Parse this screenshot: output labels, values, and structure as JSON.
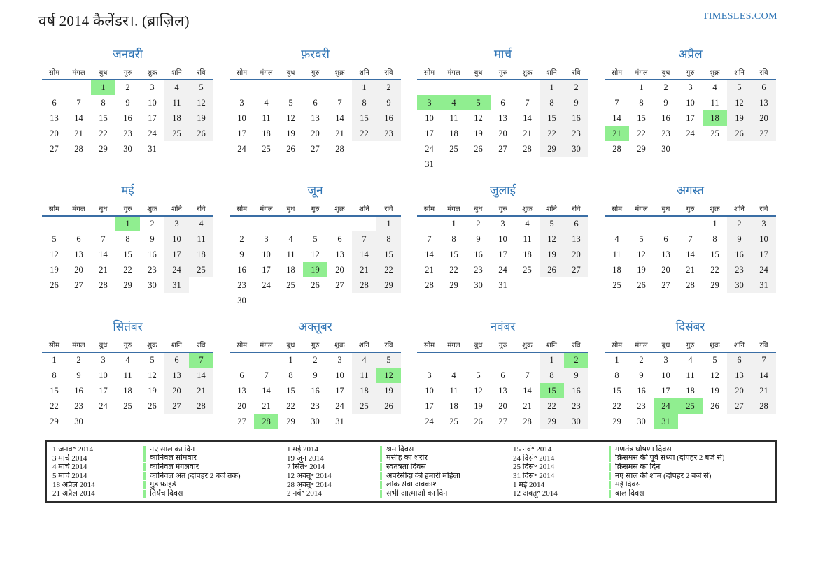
{
  "page": {
    "title": "वर्ष 2014 कैलेंडर।. (ब्राज़िल)",
    "website": "TIMESLES.COM"
  },
  "colors": {
    "accent_blue": "#2E74B5",
    "header_rule_blue": "#3A6EA5",
    "holiday_green": "#90EE90",
    "weekend_gray": "#F1F1F1"
  },
  "weekday_headers": [
    "सोम",
    "मंगल",
    "बुध",
    "गुरु",
    "शुक्र",
    "शनि",
    "रवि"
  ],
  "months": [
    {
      "name": "जनवरी",
      "weeks": [
        [
          null,
          null,
          1,
          2,
          3,
          4,
          5
        ],
        [
          6,
          7,
          8,
          9,
          10,
          11,
          12
        ],
        [
          13,
          14,
          15,
          16,
          17,
          18,
          19
        ],
        [
          20,
          21,
          22,
          23,
          24,
          25,
          26
        ],
        [
          27,
          28,
          29,
          30,
          31,
          null,
          null
        ]
      ],
      "holidays": [
        1
      ]
    },
    {
      "name": "फ़रवरी",
      "weeks": [
        [
          null,
          null,
          null,
          null,
          null,
          1,
          2
        ],
        [
          3,
          4,
          5,
          6,
          7,
          8,
          9
        ],
        [
          10,
          11,
          12,
          13,
          14,
          15,
          16
        ],
        [
          17,
          18,
          19,
          20,
          21,
          22,
          23
        ],
        [
          24,
          25,
          26,
          27,
          28,
          null,
          null
        ]
      ],
      "holidays": []
    },
    {
      "name": "मार्च",
      "weeks": [
        [
          null,
          null,
          null,
          null,
          null,
          1,
          2
        ],
        [
          3,
          4,
          5,
          6,
          7,
          8,
          9
        ],
        [
          10,
          11,
          12,
          13,
          14,
          15,
          16
        ],
        [
          17,
          18,
          19,
          20,
          21,
          22,
          23
        ],
        [
          24,
          25,
          26,
          27,
          28,
          29,
          30
        ],
        [
          31,
          null,
          null,
          null,
          null,
          null,
          null
        ]
      ],
      "holidays": [
        3,
        4,
        5
      ]
    },
    {
      "name": "अप्रैल",
      "weeks": [
        [
          null,
          1,
          2,
          3,
          4,
          5,
          6
        ],
        [
          7,
          8,
          9,
          10,
          11,
          12,
          13
        ],
        [
          14,
          15,
          16,
          17,
          18,
          19,
          20
        ],
        [
          21,
          22,
          23,
          24,
          25,
          26,
          27
        ],
        [
          28,
          29,
          30,
          null,
          null,
          null,
          null
        ]
      ],
      "holidays": [
        18,
        21
      ]
    },
    {
      "name": "मई",
      "weeks": [
        [
          null,
          null,
          null,
          1,
          2,
          3,
          4
        ],
        [
          5,
          6,
          7,
          8,
          9,
          10,
          11
        ],
        [
          12,
          13,
          14,
          15,
          16,
          17,
          18
        ],
        [
          19,
          20,
          21,
          22,
          23,
          24,
          25
        ],
        [
          26,
          27,
          28,
          29,
          30,
          31,
          null
        ]
      ],
      "holidays": [
        1
      ]
    },
    {
      "name": "जून",
      "weeks": [
        [
          null,
          null,
          null,
          null,
          null,
          null,
          1
        ],
        [
          2,
          3,
          4,
          5,
          6,
          7,
          8
        ],
        [
          9,
          10,
          11,
          12,
          13,
          14,
          15
        ],
        [
          16,
          17,
          18,
          19,
          20,
          21,
          22
        ],
        [
          23,
          24,
          25,
          26,
          27,
          28,
          29
        ],
        [
          30,
          null,
          null,
          null,
          null,
          null,
          null
        ]
      ],
      "holidays": [
        19
      ]
    },
    {
      "name": "जुलाई",
      "weeks": [
        [
          null,
          1,
          2,
          3,
          4,
          5,
          6
        ],
        [
          7,
          8,
          9,
          10,
          11,
          12,
          13
        ],
        [
          14,
          15,
          16,
          17,
          18,
          19,
          20
        ],
        [
          21,
          22,
          23,
          24,
          25,
          26,
          27
        ],
        [
          28,
          29,
          30,
          31,
          null,
          null,
          null
        ]
      ],
      "holidays": []
    },
    {
      "name": "अगस्त",
      "weeks": [
        [
          null,
          null,
          null,
          null,
          1,
          2,
          3
        ],
        [
          4,
          5,
          6,
          7,
          8,
          9,
          10
        ],
        [
          11,
          12,
          13,
          14,
          15,
          16,
          17
        ],
        [
          18,
          19,
          20,
          21,
          22,
          23,
          24
        ],
        [
          25,
          26,
          27,
          28,
          29,
          30,
          31
        ]
      ],
      "holidays": []
    },
    {
      "name": "सितंबर",
      "weeks": [
        [
          1,
          2,
          3,
          4,
          5,
          6,
          7
        ],
        [
          8,
          9,
          10,
          11,
          12,
          13,
          14
        ],
        [
          15,
          16,
          17,
          18,
          19,
          20,
          21
        ],
        [
          22,
          23,
          24,
          25,
          26,
          27,
          28
        ],
        [
          29,
          30,
          null,
          null,
          null,
          null,
          null
        ]
      ],
      "holidays": [
        7
      ]
    },
    {
      "name": "अक्तूबर",
      "weeks": [
        [
          null,
          null,
          1,
          2,
          3,
          4,
          5
        ],
        [
          6,
          7,
          8,
          9,
          10,
          11,
          12
        ],
        [
          13,
          14,
          15,
          16,
          17,
          18,
          19
        ],
        [
          20,
          21,
          22,
          23,
          24,
          25,
          26
        ],
        [
          27,
          28,
          29,
          30,
          31,
          null,
          null
        ]
      ],
      "holidays": [
        12,
        28
      ]
    },
    {
      "name": "नवंबर",
      "weeks": [
        [
          null,
          null,
          null,
          null,
          null,
          1,
          2
        ],
        [
          3,
          4,
          5,
          6,
          7,
          8,
          9
        ],
        [
          10,
          11,
          12,
          13,
          14,
          15,
          16
        ],
        [
          17,
          18,
          19,
          20,
          21,
          22,
          23
        ],
        [
          24,
          25,
          26,
          27,
          28,
          29,
          30
        ]
      ],
      "holidays": [
        2,
        15
      ]
    },
    {
      "name": "दिसंबर",
      "weeks": [
        [
          1,
          2,
          3,
          4,
          5,
          6,
          7
        ],
        [
          8,
          9,
          10,
          11,
          12,
          13,
          14
        ],
        [
          15,
          16,
          17,
          18,
          19,
          20,
          21
        ],
        [
          22,
          23,
          24,
          25,
          26,
          27,
          28
        ],
        [
          29,
          30,
          31,
          null,
          null,
          null,
          null
        ]
      ],
      "holidays": [
        24,
        25,
        31
      ]
    }
  ],
  "legend": {
    "columns": [
      {
        "entries": [
          {
            "date": "1 जनव॰ 2014",
            "name": "नए साल का दिन"
          },
          {
            "date": "3 मार्च 2014",
            "name": "कार्निवल सोमवार"
          },
          {
            "date": "4 मार्च 2014",
            "name": "कार्निवल मंगलवार"
          },
          {
            "date": "5 मार्च 2014",
            "name": "कार्निवल अंत (दोपहर 2 बजे तक)"
          },
          {
            "date": "18 अप्रैल 2014",
            "name": "गुड फ्राइडे"
          },
          {
            "date": "21 अप्रैल 2014",
            "name": "तिर्यंच दिवस"
          }
        ]
      },
      {
        "entries": [
          {
            "date": "1 मई 2014",
            "name": "श्रम दिवस"
          },
          {
            "date": "19 जून 2014",
            "name": "मसीह का शरीर"
          },
          {
            "date": "7 सितं॰ 2014",
            "name": "स्वतंत्रता दिवस"
          },
          {
            "date": "12 अक्तू॰ 2014",
            "name": "अपरेसीदा की हमारी महिला"
          },
          {
            "date": "28 अक्तू॰ 2014",
            "name": "लोक सेवा अवकाश"
          },
          {
            "date": "2 नवं॰ 2014",
            "name": "सभी आत्माओं का दिन"
          }
        ]
      },
      {
        "entries": [
          {
            "date": "15 नवं॰ 2014",
            "name": "गणतंत्र घोषणा दिवस"
          },
          {
            "date": "24 दिसं॰ 2014",
            "name": "क्रिसमस की पूर्व संध्या (दोपहर 2 बजे से)"
          },
          {
            "date": "25 दिसं॰ 2014",
            "name": "क्रिसमस का दिन"
          },
          {
            "date": "31 दिसं॰ 2014",
            "name": "नए साल की शाम (दोपहर 2 बजे से)"
          },
          {
            "date": "1 मई 2014",
            "name": "मई दिवस"
          },
          {
            "date": "12 अक्तू॰ 2014",
            "name": "बाल दिवस"
          }
        ]
      }
    ]
  }
}
